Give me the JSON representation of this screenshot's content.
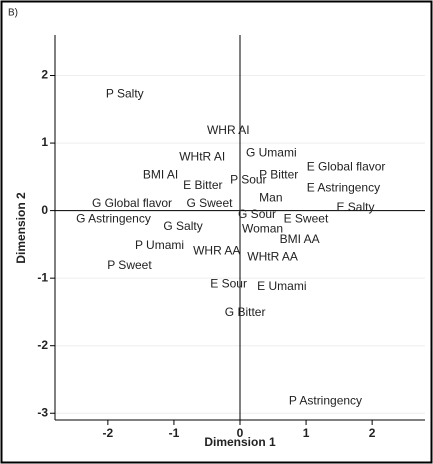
{
  "chart_data": {
    "type": "scatter",
    "panel_label": "B)",
    "x_label": "Dimension 1",
    "y_label": "Dimension 2",
    "xlim": [
      -2.8,
      2.8
    ],
    "ylim": [
      -3.1,
      2.6
    ],
    "xticks": [
      -2,
      -1,
      0,
      1,
      2
    ],
    "yticks": [
      -3,
      -2,
      -1,
      0,
      1,
      2
    ],
    "grid": true,
    "zero_lines": true,
    "series": [
      {
        "color": "#222222",
        "labels": [
          "P Salty",
          "WHR AI",
          "G Umami",
          "WHtR AI",
          "E Global flavor",
          "BMI AI",
          "P Bitter",
          "E Bitter",
          "P Sour",
          "E Astringency",
          "Man",
          "G Global flavor",
          "G Sweet",
          "E Salty",
          "G Sour",
          "E Sweet",
          "G Astringency",
          "G Salty",
          "Woman",
          "BMI AA",
          "P Umami",
          "WHR AA",
          "WHtR AA",
          "P Sweet",
          "E Sour",
          "E Umami",
          "G Bitter",
          "P Astringency"
        ],
        "x": [
          -2.03,
          -0.5,
          0.09,
          -0.92,
          1.01,
          -1.47,
          0.29,
          -0.86,
          -0.15,
          1.01,
          0.29,
          -2.24,
          -0.81,
          1.46,
          -0.03,
          0.66,
          -2.48,
          -1.16,
          0.03,
          0.6,
          -1.59,
          -0.71,
          0.11,
          -2.01,
          -0.45,
          0.26,
          -0.23,
          0.74
        ],
        "y": [
          1.72,
          1.18,
          0.85,
          0.79,
          0.64,
          0.52,
          0.52,
          0.37,
          0.45,
          0.33,
          0.18,
          0.1,
          0.1,
          0.04,
          -0.06,
          -0.13,
          -0.13,
          -0.24,
          -0.28,
          -0.43,
          -0.52,
          -0.6,
          -0.69,
          -0.82,
          -1.09,
          -1.13,
          -1.51,
          -2.82
        ]
      }
    ]
  }
}
